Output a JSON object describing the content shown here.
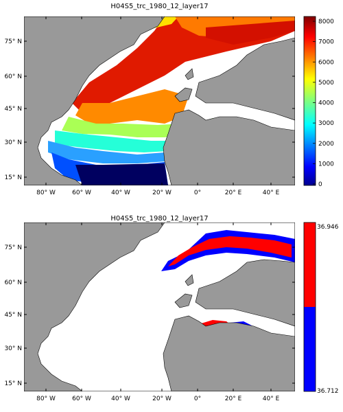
{
  "panels": [
    {
      "title": "H04S5_trc_1980_12_layer17",
      "colorbar": {
        "type": "jet",
        "min": 0,
        "max": 8000,
        "ticks": [
          "8000",
          "7000",
          "6000",
          "5000",
          "4000",
          "3000",
          "2000",
          "1000",
          "0"
        ]
      }
    },
    {
      "title": "H04S5_trc_1980_12_layer17",
      "colorbar": {
        "type": "binary",
        "colors": [
          "#ff0000",
          "#0000ff"
        ],
        "ticks": [
          "36.946",
          "36.712"
        ]
      }
    }
  ],
  "axes": {
    "lat_ticks": [
      "75° N",
      "60° N",
      "45° N",
      "30° N",
      "15° N"
    ],
    "lon_ticks": [
      "80° W",
      "60° W",
      "40° W",
      "20° W",
      "0°",
      "20° E",
      "40° E"
    ]
  },
  "colors": {
    "land": "#999999",
    "ocean_missing": "#ffffff",
    "coast": "#000000"
  }
}
